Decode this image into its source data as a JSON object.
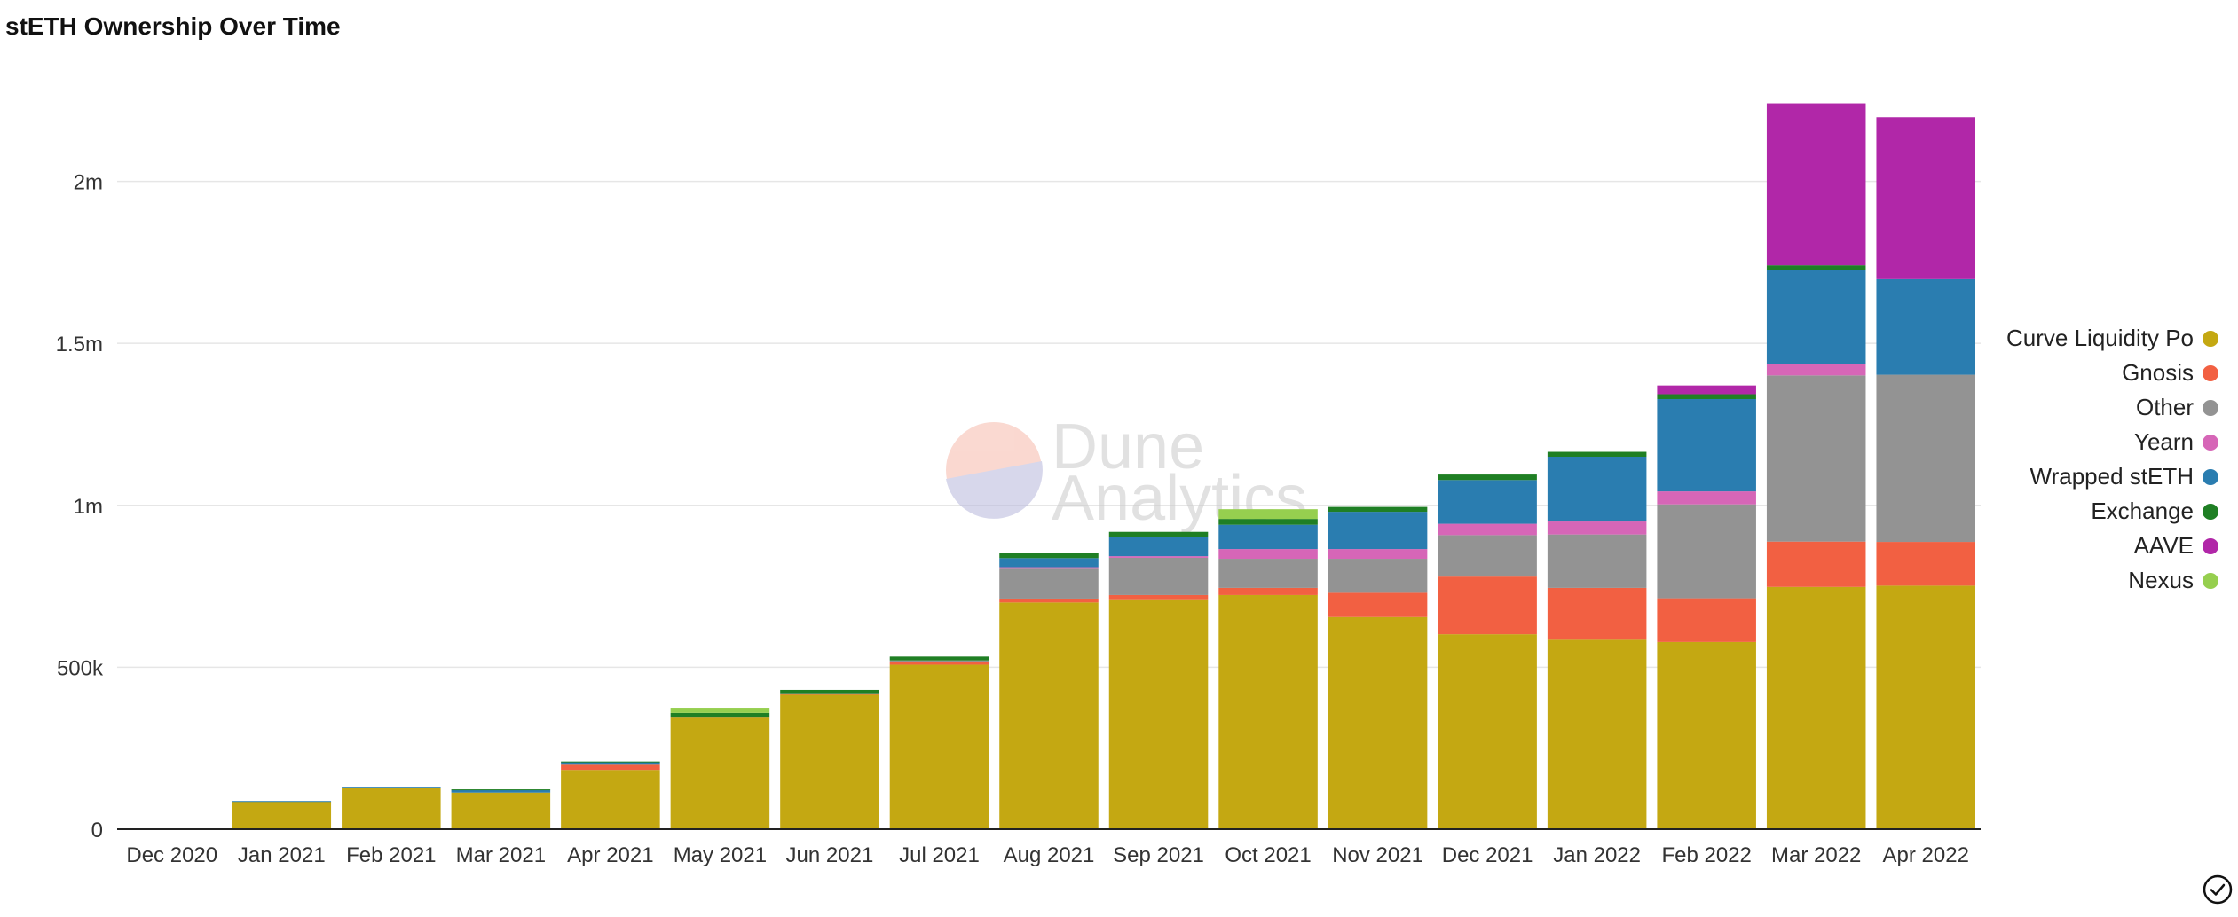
{
  "chart_data": {
    "type": "bar",
    "stacked": true,
    "title": "stETH Ownership Over Time",
    "xlabel": "",
    "ylabel": "",
    "ylim": [
      0,
      2300000
    ],
    "yticks": [
      0,
      500000,
      1000000,
      1500000,
      2000000
    ],
    "ytick_labels": [
      "0",
      "500k",
      "1m",
      "1.5m",
      "2m"
    ],
    "grid": true,
    "legend_position": "right",
    "categories": [
      "Dec 2020",
      "Jan 2021",
      "Feb 2021",
      "Mar 2021",
      "Apr 2021",
      "May 2021",
      "Jun 2021",
      "Jul 2021",
      "Aug 2021",
      "Sep 2021",
      "Oct 2021",
      "Nov 2021",
      "Dec 2021",
      "Jan 2022",
      "Feb 2022",
      "Mar 2022",
      "Apr 2022"
    ],
    "series": [
      {
        "name": "Curve Liquidity Pool",
        "color": "#c4a812",
        "values": [
          2000,
          85000,
          128000,
          113000,
          183000,
          345000,
          415000,
          508000,
          700000,
          710000,
          723000,
          655000,
          602000,
          585000,
          578000,
          748000,
          752000
        ]
      },
      {
        "name": "Gnosis",
        "color": "#f26042",
        "values": [
          0,
          0,
          0,
          0,
          16000,
          0,
          3000,
          8000,
          12000,
          13000,
          22000,
          75000,
          178000,
          160000,
          135000,
          140000,
          135000
        ]
      },
      {
        "name": "Other",
        "color": "#939393",
        "values": [
          0,
          0,
          0,
          0,
          2000,
          2000,
          2000,
          5000,
          92000,
          115000,
          90000,
          105000,
          128000,
          165000,
          290000,
          513000,
          516000
        ]
      },
      {
        "name": "Yearn",
        "color": "#d666b7",
        "values": [
          0,
          0,
          0,
          0,
          0,
          0,
          0,
          0,
          5000,
          5000,
          30000,
          30000,
          35000,
          40000,
          40000,
          35000,
          0
        ]
      },
      {
        "name": "Wrapped stETH",
        "color": "#2a7db0",
        "values": [
          0,
          2000,
          3000,
          8000,
          6000,
          0,
          0,
          0,
          28000,
          58000,
          75000,
          115000,
          135000,
          200000,
          285000,
          290000,
          295000
        ]
      },
      {
        "name": "Exchange",
        "color": "#1f7f24",
        "values": [
          0,
          0,
          0,
          2000,
          2000,
          12000,
          10000,
          12000,
          17000,
          17000,
          18000,
          15000,
          17000,
          15000,
          15000,
          15000,
          0
        ]
      },
      {
        "name": "AAVE",
        "color": "#b127a8",
        "values": [
          0,
          0,
          0,
          0,
          0,
          0,
          0,
          0,
          0,
          0,
          0,
          0,
          0,
          0,
          27000,
          500000,
          500000
        ]
      },
      {
        "name": "Nexus",
        "color": "#96cf4f",
        "values": [
          0,
          0,
          0,
          0,
          0,
          16000,
          0,
          0,
          0,
          0,
          30000,
          0,
          0,
          0,
          0,
          0,
          0
        ]
      }
    ]
  },
  "legend": {
    "items": [
      {
        "label": "Curve Liquidity Po",
        "color": "#c4a812"
      },
      {
        "label": "Gnosis",
        "color": "#f26042"
      },
      {
        "label": "Other",
        "color": "#939393"
      },
      {
        "label": "Yearn",
        "color": "#d666b7"
      },
      {
        "label": "Wrapped stETH",
        "color": "#2a7db0"
      },
      {
        "label": "Exchange",
        "color": "#1f7f24"
      },
      {
        "label": "AAVE",
        "color": "#b127a8"
      },
      {
        "label": "Nexus",
        "color": "#96cf4f"
      }
    ]
  },
  "watermark": {
    "line1": "Dune",
    "line2": "Analytics"
  }
}
